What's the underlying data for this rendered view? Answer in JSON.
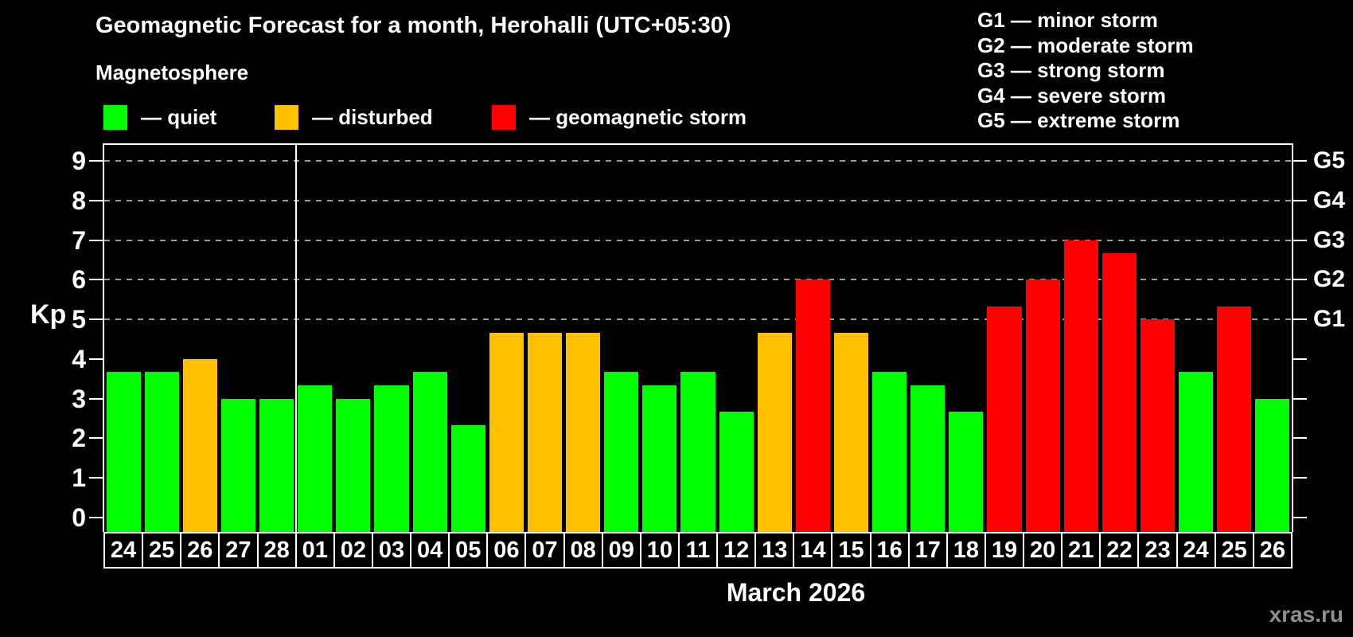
{
  "title": "Geomagnetic Forecast for a month, Herohalli (UTC+05:30)",
  "subtitle": "Magnetosphere",
  "legend": {
    "items": [
      {
        "name": "quiet",
        "color": "#00ff00",
        "label": "— quiet"
      },
      {
        "name": "disturbed",
        "color": "#ffc000",
        "label": "— disturbed"
      },
      {
        "name": "storm",
        "color": "#ff0000",
        "label": "— geomagnetic storm"
      }
    ]
  },
  "storm_scale_legend": [
    "G1 — minor storm",
    "G2 — moderate storm",
    "G3 — strong storm",
    "G4 — severe storm",
    "G5 — extreme storm"
  ],
  "watermark": "xras.ru",
  "chart_data": {
    "type": "bar",
    "title": "Geomagnetic Forecast for a month, Herohalli (UTC+05:30)",
    "subtitle": "Magnetosphere",
    "ylabel": "Kp",
    "xlabel": "March 2026",
    "ylim": [
      0,
      9.4
    ],
    "yticks": [
      0,
      1,
      2,
      3,
      4,
      5,
      6,
      7,
      8,
      9
    ],
    "gridlines_at": [
      5,
      6,
      7,
      8,
      9
    ],
    "grid_style": "dashed",
    "legend_position": "top",
    "right_axis_labels": [
      {
        "label": "G1",
        "kp": 5
      },
      {
        "label": "G2",
        "kp": 6
      },
      {
        "label": "G3",
        "kp": 7
      },
      {
        "label": "G4",
        "kp": 8
      },
      {
        "label": "G5",
        "kp": 9
      }
    ],
    "month_separator_before_index": 5,
    "categories": [
      "24",
      "25",
      "26",
      "27",
      "28",
      "01",
      "02",
      "03",
      "04",
      "05",
      "06",
      "07",
      "08",
      "09",
      "10",
      "11",
      "12",
      "13",
      "14",
      "15",
      "16",
      "17",
      "18",
      "19",
      "20",
      "21",
      "22",
      "23",
      "24",
      "25",
      "26"
    ],
    "values": [
      3.67,
      3.67,
      4,
      3,
      3,
      3.33,
      3,
      3.33,
      3.67,
      2.33,
      4.67,
      4.67,
      4.67,
      3.67,
      3.33,
      3.67,
      2.67,
      4.67,
      6,
      4.67,
      3.67,
      3.33,
      2.67,
      5.33,
      6,
      7,
      6.67,
      5,
      3.67,
      5.33,
      3
    ],
    "statuses": [
      "quiet",
      "quiet",
      "disturbed",
      "quiet",
      "quiet",
      "quiet",
      "quiet",
      "quiet",
      "quiet",
      "quiet",
      "disturbed",
      "disturbed",
      "disturbed",
      "quiet",
      "quiet",
      "quiet",
      "quiet",
      "disturbed",
      "storm",
      "disturbed",
      "quiet",
      "quiet",
      "quiet",
      "storm",
      "storm",
      "storm",
      "storm",
      "storm",
      "quiet",
      "storm",
      "quiet"
    ],
    "colors_by_status": {
      "quiet": "#00ff00",
      "disturbed": "#ffc000",
      "storm": "#ff0000"
    }
  }
}
